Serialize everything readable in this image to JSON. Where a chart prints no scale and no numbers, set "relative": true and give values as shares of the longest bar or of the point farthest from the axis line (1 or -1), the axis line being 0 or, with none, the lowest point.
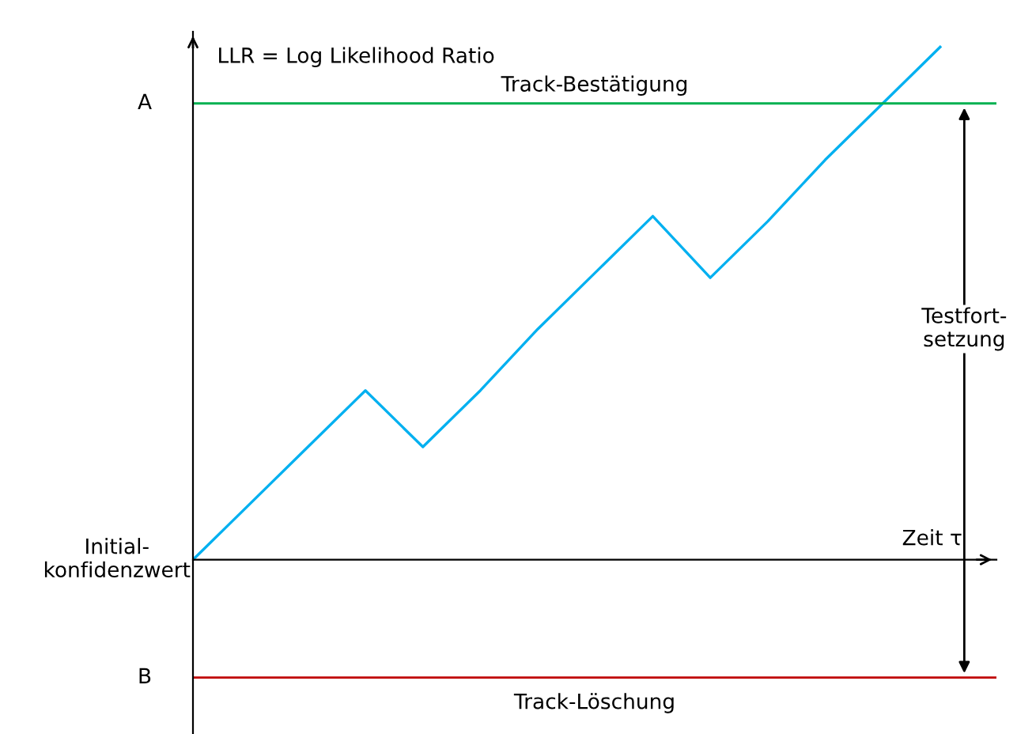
{
  "chart_data": {
    "type": "line",
    "relative": true,
    "ylabel": "LLR = Log Likelihood Ratio",
    "xlabel": "Zeit τ",
    "categories": [
      null,
      null,
      null,
      null,
      null,
      null,
      null,
      null,
      null,
      null,
      null,
      null,
      null,
      null
    ],
    "series": [
      {
        "color": "#00b0f0",
        "values": [
          0,
          0.11,
          0.22,
          0.33,
          0.22,
          0.33,
          0.45,
          0.56,
          0.67,
          0.55,
          0.66,
          0.78,
          0.89,
          1
        ]
      }
    ],
    "ref_lines": [
      {
        "axis": "y",
        "value": 0.89,
        "label": "Track-Bestätigung",
        "color": "#00b050"
      },
      {
        "axis": "y",
        "value": -0.23,
        "label": "Track-Löschung",
        "color": "#c00000"
      }
    ],
    "annotations": [
      "A",
      "B",
      "Initial-\nkonfidenzwert",
      "Testfort-\nsetzung"
    ],
    "legend": false,
    "marker": "none",
    "line_style": "solid"
  }
}
